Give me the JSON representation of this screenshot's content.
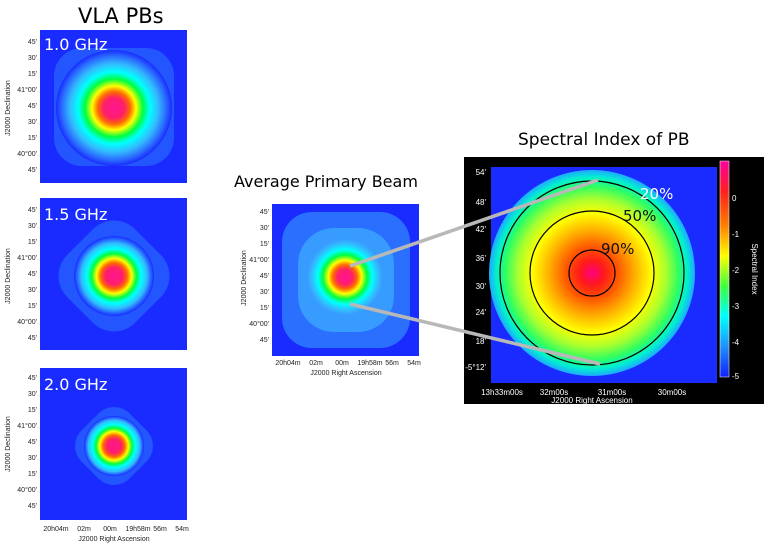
{
  "left_title": "VLA PBs",
  "middle_title": "Average Primary Beam",
  "right_title": "Spectral Index of PB",
  "panels": [
    {
      "label": "1.0 GHz"
    },
    {
      "label": "1.5 GHz"
    },
    {
      "label": "2.0 GHz"
    }
  ],
  "dec_ticks": [
    "45'",
    "30'",
    "15'",
    "41°00'",
    "45'",
    "30'",
    "15'",
    "40°00'",
    "45'"
  ],
  "ra_ticks": [
    "20h04m",
    "02m",
    "00m",
    "19h58m",
    "56m",
    "54m"
  ],
  "dec_label": "J2000 Declination",
  "ra_label": "J2000 Right Ascension",
  "si_dec_ticks": [
    "54'",
    "48'",
    "42'",
    "36'",
    "30'",
    "24'",
    "18'",
    "-5°12'"
  ],
  "si_ra_ticks": [
    "13h33m00s",
    "32m00s",
    "31m00s",
    "30m00s"
  ],
  "colorbar": {
    "ticks": [
      "0",
      "-1",
      "-2",
      "-3",
      "-4",
      "-5"
    ],
    "label": "Spectral Index"
  },
  "contours": [
    "20%",
    "50%",
    "90%"
  ],
  "colors": {
    "plot_bg": "#1a2bff",
    "core": "#ff1493",
    "si_bg": "#000000"
  }
}
